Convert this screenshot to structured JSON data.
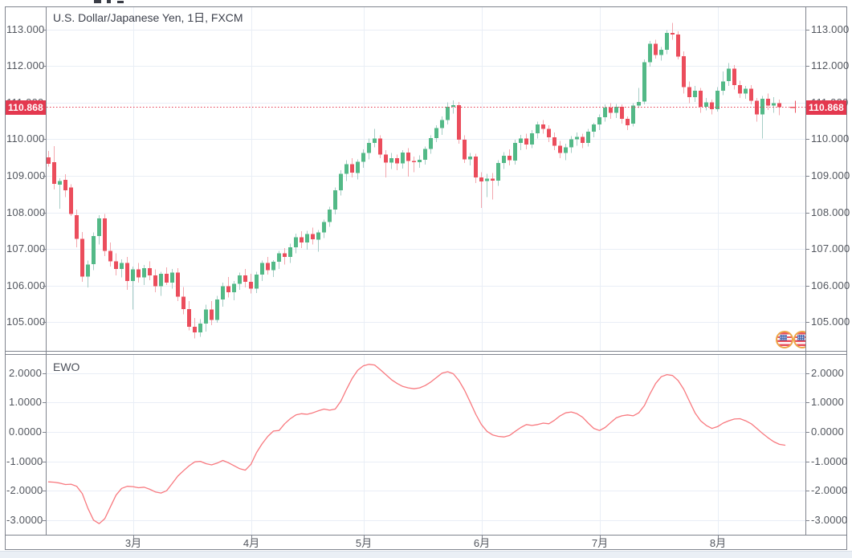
{
  "chart_data": [
    {
      "type": "candlestick",
      "title": "U.S. Dollar/Japanese Yen, 1日, FXCM",
      "last_price": 110.868,
      "last_price_label": "110.868",
      "y_axis": {
        "ticks": [
          {
            "label": "113.000",
            "value": 113
          },
          {
            "label": "112.000",
            "value": 112
          },
          {
            "label": "111.000",
            "value": 111
          },
          {
            "label": "110.000",
            "value": 110
          },
          {
            "label": "109.000",
            "value": 109
          },
          {
            "label": "108.000",
            "value": 108
          },
          {
            "label": "107.000",
            "value": 107
          },
          {
            "label": "106.000",
            "value": 106
          },
          {
            "label": "105.000",
            "value": 105
          }
        ],
        "visible_range": [
          104.3,
          113.6
        ]
      },
      "x_axis": {
        "months": [
          {
            "label": "3月",
            "i": 15
          },
          {
            "label": "4月",
            "i": 36
          },
          {
            "label": "5月",
            "i": 56
          },
          {
            "label": "6月",
            "i": 77
          },
          {
            "label": "7月",
            "i": 98
          },
          {
            "label": "8月",
            "i": 119
          }
        ]
      },
      "colors": {
        "up": "#53b987",
        "down": "#eb4d5c",
        "up_wick": "#a6cdc6",
        "down_wick": "#f3a7ae",
        "grid": "#e9eef6",
        "price_line": "#e4384f"
      },
      "candles": [
        [
          109.5,
          109.68,
          109.25,
          109.33
        ],
        [
          109.37,
          109.81,
          108.62,
          108.78
        ],
        [
          108.76,
          108.93,
          108.1,
          108.86
        ],
        [
          108.89,
          109.04,
          108.42,
          108.6
        ],
        [
          108.68,
          108.77,
          107.9,
          107.96
        ],
        [
          107.92,
          108.08,
          107.05,
          107.28
        ],
        [
          107.28,
          107.46,
          106.1,
          106.25
        ],
        [
          106.25,
          106.68,
          105.95,
          106.58
        ],
        [
          106.58,
          107.45,
          106.42,
          107.35
        ],
        [
          107.35,
          107.92,
          107.12,
          107.84
        ],
        [
          107.84,
          107.96,
          106.8,
          106.95
        ],
        [
          106.95,
          107.18,
          106.52,
          106.66
        ],
        [
          106.66,
          106.88,
          106.28,
          106.45
        ],
        [
          106.45,
          106.72,
          106.22,
          106.62
        ],
        [
          106.62,
          106.78,
          105.88,
          106.12
        ],
        [
          106.12,
          106.52,
          105.35,
          106.44
        ],
        [
          106.44,
          106.62,
          106.08,
          106.22
        ],
        [
          106.22,
          106.56,
          106.02,
          106.48
        ],
        [
          106.48,
          106.66,
          106.15,
          106.28
        ],
        [
          106.28,
          106.44,
          105.82,
          105.98
        ],
        [
          105.98,
          106.38,
          105.72,
          106.32
        ],
        [
          106.32,
          106.5,
          106.02,
          106.08
        ],
        [
          106.08,
          106.45,
          105.92,
          106.36
        ],
        [
          106.36,
          106.48,
          105.58,
          105.7
        ],
        [
          105.7,
          105.96,
          105.22,
          105.36
        ],
        [
          105.36,
          105.58,
          104.78,
          104.88
        ],
        [
          104.88,
          105.12,
          104.56,
          104.72
        ],
        [
          104.72,
          105.08,
          104.6,
          104.96
        ],
        [
          104.96,
          105.48,
          104.74,
          105.35
        ],
        [
          105.35,
          105.58,
          104.92,
          105.06
        ],
        [
          105.06,
          105.72,
          104.98,
          105.62
        ],
        [
          105.62,
          106.08,
          105.42,
          105.98
        ],
        [
          105.98,
          106.24,
          105.68,
          105.82
        ],
        [
          105.82,
          106.12,
          105.6,
          106.05
        ],
        [
          106.05,
          106.36,
          105.88,
          106.28
        ],
        [
          106.28,
          106.45,
          105.95,
          106.1
        ],
        [
          106.1,
          106.32,
          105.78,
          105.92
        ],
        [
          105.92,
          106.38,
          105.8,
          106.3
        ],
        [
          106.3,
          106.68,
          106.12,
          106.62
        ],
        [
          106.62,
          106.78,
          106.3,
          106.42
        ],
        [
          106.42,
          106.7,
          106.24,
          106.65
        ],
        [
          106.65,
          106.95,
          106.45,
          106.88
        ],
        [
          106.88,
          107.02,
          106.58,
          106.78
        ],
        [
          106.78,
          107.15,
          106.62,
          107.05
        ],
        [
          107.05,
          107.42,
          106.88,
          107.32
        ],
        [
          107.32,
          107.48,
          107.02,
          107.18
        ],
        [
          107.18,
          107.5,
          106.98,
          107.41
        ],
        [
          107.41,
          107.58,
          107.12,
          107.26
        ],
        [
          107.26,
          107.52,
          106.92,
          107.45
        ],
        [
          107.45,
          107.8,
          107.3,
          107.74
        ],
        [
          107.74,
          108.15,
          107.6,
          108.08
        ],
        [
          108.08,
          108.68,
          107.95,
          108.6
        ],
        [
          108.6,
          109.15,
          108.46,
          109.05
        ],
        [
          109.05,
          109.42,
          108.85,
          109.32
        ],
        [
          109.32,
          109.48,
          108.95,
          109.08
        ],
        [
          109.08,
          109.45,
          108.9,
          109.38
        ],
        [
          109.38,
          109.72,
          109.22,
          109.62
        ],
        [
          109.62,
          110.02,
          109.45,
          109.9
        ],
        [
          109.9,
          110.28,
          109.78,
          110.02
        ],
        [
          110.02,
          110.1,
          109.48,
          109.58
        ],
        [
          109.58,
          109.7,
          108.95,
          109.36
        ],
        [
          109.36,
          109.62,
          109.18,
          109.48
        ],
        [
          109.48,
          109.58,
          109.15,
          109.34
        ],
        [
          109.34,
          109.7,
          109.2,
          109.63
        ],
        [
          109.63,
          109.75,
          108.98,
          109.4
        ],
        [
          109.4,
          109.52,
          109.1,
          109.37
        ],
        [
          109.37,
          109.56,
          109.22,
          109.44
        ],
        [
          109.44,
          109.8,
          109.3,
          109.73
        ],
        [
          109.73,
          110.1,
          109.6,
          110.03
        ],
        [
          110.03,
          110.38,
          109.92,
          110.3
        ],
        [
          110.3,
          110.62,
          110.12,
          110.52
        ],
        [
          110.52,
          111.0,
          110.4,
          110.88
        ],
        [
          110.88,
          111.06,
          110.7,
          110.93
        ],
        [
          110.93,
          111.02,
          109.88,
          109.98
        ],
        [
          109.98,
          110.1,
          109.35,
          109.45
        ],
        [
          109.45,
          109.62,
          109.28,
          109.52
        ],
        [
          109.52,
          109.6,
          108.8,
          108.95
        ],
        [
          108.95,
          109.1,
          108.12,
          108.85
        ],
        [
          108.85,
          109.05,
          108.42,
          108.92
        ],
        [
          108.92,
          109.08,
          108.35,
          108.86
        ],
        [
          108.86,
          109.42,
          108.72,
          109.35
        ],
        [
          109.35,
          109.65,
          109.18,
          109.55
        ],
        [
          109.55,
          109.72,
          109.28,
          109.42
        ],
        [
          109.42,
          109.98,
          109.3,
          109.9
        ],
        [
          109.9,
          110.12,
          109.7,
          110.02
        ],
        [
          110.02,
          110.15,
          109.72,
          109.85
        ],
        [
          109.85,
          110.25,
          109.75,
          110.16
        ],
        [
          110.16,
          110.48,
          110.02,
          110.4
        ],
        [
          110.4,
          110.52,
          110.15,
          110.28
        ],
        [
          110.28,
          110.38,
          109.92,
          110.05
        ],
        [
          110.05,
          110.18,
          109.7,
          109.82
        ],
        [
          109.82,
          109.95,
          109.48,
          109.62
        ],
        [
          109.62,
          109.88,
          109.42,
          109.78
        ],
        [
          109.78,
          110.08,
          109.62,
          110.0
        ],
        [
          110.0,
          110.18,
          109.82,
          110.06
        ],
        [
          110.06,
          110.15,
          109.75,
          109.9
        ],
        [
          109.9,
          110.28,
          109.8,
          110.2
        ],
        [
          110.2,
          110.45,
          110.05,
          110.4
        ],
        [
          110.4,
          110.68,
          110.25,
          110.6
        ],
        [
          110.6,
          110.95,
          110.48,
          110.86
        ],
        [
          110.86,
          110.98,
          110.55,
          110.72
        ],
        [
          110.72,
          110.96,
          110.58,
          110.88
        ],
        [
          110.88,
          110.95,
          110.42,
          110.55
        ],
        [
          110.55,
          110.62,
          110.25,
          110.38
        ],
        [
          110.42,
          110.98,
          110.35,
          110.92
        ],
        [
          110.92,
          111.4,
          110.85,
          111.02
        ],
        [
          111.02,
          112.18,
          110.95,
          112.1
        ],
        [
          112.1,
          112.68,
          111.98,
          112.6
        ],
        [
          112.6,
          112.72,
          112.2,
          112.3
        ],
        [
          112.3,
          112.52,
          112.15,
          112.44
        ],
        [
          112.44,
          112.98,
          112.32,
          112.9
        ],
        [
          112.9,
          113.17,
          112.72,
          112.86
        ],
        [
          112.86,
          112.95,
          112.18,
          112.26
        ],
        [
          112.26,
          112.4,
          111.25,
          111.42
        ],
        [
          111.42,
          111.58,
          110.98,
          111.15
        ],
        [
          111.15,
          111.45,
          111.02,
          111.32
        ],
        [
          111.32,
          111.4,
          110.72,
          110.88
        ],
        [
          110.88,
          111.12,
          110.78,
          111.0
        ],
        [
          111.0,
          111.08,
          110.68,
          110.82
        ],
        [
          110.82,
          111.42,
          110.75,
          111.32
        ],
        [
          111.32,
          111.85,
          111.2,
          111.58
        ],
        [
          111.58,
          112.08,
          111.45,
          111.92
        ],
        [
          111.92,
          112.02,
          111.35,
          111.48
        ],
        [
          111.48,
          111.6,
          111.12,
          111.25
        ],
        [
          111.25,
          111.45,
          111.1,
          111.38
        ],
        [
          111.38,
          111.48,
          110.95,
          111.05
        ],
        [
          111.05,
          111.12,
          110.48,
          110.68
        ],
        [
          110.68,
          111.18,
          110.02,
          111.1
        ],
        [
          111.1,
          111.25,
          110.8,
          110.92
        ],
        [
          110.92,
          111.15,
          110.72,
          110.98
        ],
        [
          110.98,
          111.08,
          110.65,
          110.87
        ]
      ]
    },
    {
      "type": "line",
      "title": "EWO",
      "color": "#f8797f",
      "y_axis": {
        "ticks": [
          {
            "label": "2.0000",
            "value": 2
          },
          {
            "label": "1.0000",
            "value": 1
          },
          {
            "label": "0.0000",
            "value": 0
          },
          {
            "label": "-1.0000",
            "value": -1
          },
          {
            "label": "-2.0000",
            "value": -2
          },
          {
            "label": "-3.0000",
            "value": -3
          }
        ]
      },
      "values": [
        -1.7,
        -1.71,
        -1.74,
        -1.79,
        -1.78,
        -1.85,
        -2.1,
        -2.6,
        -3.0,
        -3.12,
        -2.95,
        -2.55,
        -2.15,
        -1.92,
        -1.85,
        -1.86,
        -1.9,
        -1.88,
        -1.95,
        -2.04,
        -2.08,
        -2.0,
        -1.75,
        -1.5,
        -1.32,
        -1.15,
        -1.02,
        -1.0,
        -1.08,
        -1.12,
        -1.06,
        -0.97,
        -1.05,
        -1.15,
        -1.25,
        -1.3,
        -1.1,
        -0.7,
        -0.4,
        -0.15,
        0.03,
        0.05,
        0.28,
        0.45,
        0.58,
        0.62,
        0.6,
        0.65,
        0.72,
        0.78,
        0.74,
        0.78,
        1.05,
        1.45,
        1.82,
        2.1,
        2.25,
        2.3,
        2.28,
        2.12,
        1.95,
        1.78,
        1.65,
        1.55,
        1.5,
        1.47,
        1.5,
        1.58,
        1.7,
        1.85,
        2.0,
        2.05,
        1.98,
        1.75,
        1.42,
        1.02,
        0.6,
        0.25,
        0.02,
        -0.1,
        -0.15,
        -0.17,
        -0.12,
        0.02,
        0.15,
        0.25,
        0.22,
        0.25,
        0.3,
        0.28,
        0.4,
        0.55,
        0.65,
        0.68,
        0.62,
        0.5,
        0.3,
        0.12,
        0.05,
        0.15,
        0.32,
        0.48,
        0.55,
        0.58,
        0.55,
        0.65,
        0.9,
        1.3,
        1.65,
        1.88,
        1.95,
        1.92,
        1.75,
        1.45,
        1.05,
        0.65,
        0.38,
        0.22,
        0.12,
        0.18,
        0.3,
        0.38,
        0.44,
        0.45,
        0.38,
        0.28,
        0.12,
        -0.05,
        -0.2,
        -0.33,
        -0.42,
        -0.45
      ]
    }
  ],
  "icons": {
    "base_flag": "us-flag-icon",
    "quote_flag": "currency-flag-icon"
  }
}
